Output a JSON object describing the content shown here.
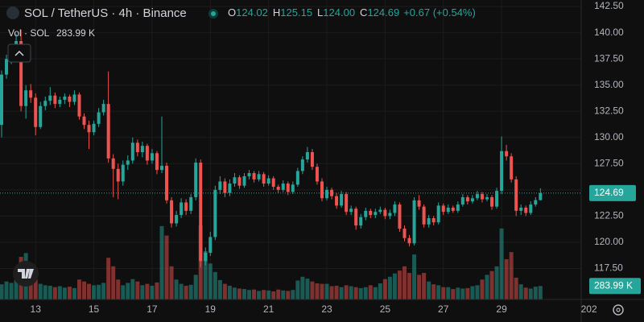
{
  "header": {
    "symbol": "SOL / TetherUS · 4h · Binance",
    "o_key": "O",
    "o": "124.02",
    "h_key": "H",
    "h": "125.15",
    "l_key": "L",
    "l": "124.00",
    "c_key": "C",
    "c": "124.69",
    "change": "+0.67 (+0.54%)"
  },
  "volume_legend": {
    "title": "Vol · SOL",
    "value": "283.99 K"
  },
  "chart_data": {
    "type": "candlestick",
    "up_color": "#26a69a",
    "down_color": "#ef5350",
    "ylim": [
      114.54,
      143.12
    ],
    "yticks": [
      {
        "value": 142.5,
        "label": "142.50"
      },
      {
        "value": 140,
        "label": "140.00"
      },
      {
        "value": 137.5,
        "label": "137.50"
      },
      {
        "value": 135,
        "label": "135.00"
      },
      {
        "value": 132.5,
        "label": "132.50"
      },
      {
        "value": 130,
        "label": "130.00"
      },
      {
        "value": 127.5,
        "label": "127.50"
      },
      {
        "value": 125,
        "label": "125.00"
      },
      {
        "value": 122.5,
        "label": "122.50"
      },
      {
        "value": 120,
        "label": "120.00"
      },
      {
        "value": 117.5,
        "label": "117.50"
      }
    ],
    "xticks": [
      {
        "value": 7,
        "label": "13"
      },
      {
        "value": 19,
        "label": "15"
      },
      {
        "value": 31,
        "label": "17"
      },
      {
        "value": 43,
        "label": "19"
      },
      {
        "value": 55,
        "label": "21"
      },
      {
        "value": 67,
        "label": "23"
      },
      {
        "value": 79,
        "label": "25"
      },
      {
        "value": 91,
        "label": "27"
      },
      {
        "value": 103,
        "label": "29"
      },
      {
        "value": 121,
        "label": "202"
      }
    ],
    "last_price": {
      "value": 124.69,
      "label": "124.69"
    },
    "last_volume": {
      "value": 283.99,
      "label": "283.99 K"
    },
    "volume_lim": [
      0,
      1700
    ],
    "candles": [
      [
        131.2,
        136.4,
        130.0,
        136.0
      ],
      [
        136.0,
        137.9,
        135.6,
        137.5
      ],
      [
        137.5,
        138.9,
        137.0,
        138.6
      ],
      [
        138.6,
        139.9,
        138.2,
        139.2
      ],
      [
        139.2,
        140.3,
        132.5,
        133.0
      ],
      [
        133.0,
        135.0,
        131.8,
        134.5
      ],
      [
        134.5,
        135.1,
        133.3,
        133.8
      ],
      [
        133.8,
        134.2,
        130.2,
        131.0
      ],
      [
        131.0,
        133.4,
        130.8,
        133.0
      ],
      [
        133.0,
        133.9,
        132.6,
        133.5
      ],
      [
        133.5,
        134.8,
        133.1,
        134.0
      ],
      [
        134.0,
        134.3,
        132.8,
        133.2
      ],
      [
        133.2,
        133.9,
        132.9,
        133.6
      ],
      [
        133.6,
        134.2,
        133.2,
        133.9
      ],
      [
        133.9,
        134.1,
        132.9,
        133.4
      ],
      [
        133.4,
        134.5,
        133.1,
        134.1
      ],
      [
        134.1,
        134.3,
        131.7,
        132.0
      ],
      [
        132.0,
        132.3,
        130.8,
        131.2
      ],
      [
        131.2,
        131.6,
        128.9,
        130.5
      ],
      [
        130.5,
        131.6,
        130.2,
        131.3
      ],
      [
        131.3,
        132.8,
        131.0,
        132.4
      ],
      [
        132.4,
        133.6,
        132.1,
        133.2
      ],
      [
        133.2,
        136.3,
        127.6,
        128.0
      ],
      [
        128.0,
        128.4,
        124.3,
        127.0
      ],
      [
        127.0,
        127.5,
        124.1,
        125.8
      ],
      [
        125.8,
        127.8,
        125.4,
        127.4
      ],
      [
        127.4,
        128.3,
        126.9,
        127.8
      ],
      [
        127.8,
        130.0,
        127.5,
        129.5
      ],
      [
        129.5,
        129.8,
        128.2,
        128.6
      ],
      [
        128.6,
        129.6,
        128.1,
        129.2
      ],
      [
        129.2,
        129.4,
        127.4,
        127.8
      ],
      [
        127.8,
        128.9,
        127.5,
        128.5
      ],
      [
        128.5,
        128.7,
        126.5,
        126.9
      ],
      [
        126.9,
        132.0,
        126.6,
        127.3
      ],
      [
        127.3,
        127.6,
        123.7,
        124.0
      ],
      [
        124.0,
        124.3,
        121.4,
        121.8
      ],
      [
        121.8,
        123.0,
        121.5,
        122.6
      ],
      [
        122.6,
        124.2,
        122.3,
        123.8
      ],
      [
        123.8,
        124.1,
        122.6,
        123.0
      ],
      [
        123.0,
        124.6,
        122.7,
        124.3
      ],
      [
        124.3,
        128.0,
        124.0,
        127.6
      ],
      [
        127.6,
        127.9,
        117.6,
        118.2
      ],
      [
        118.2,
        119.5,
        117.8,
        119.0
      ],
      [
        119.0,
        121.0,
        118.7,
        120.5
      ],
      [
        120.5,
        125.4,
        120.2,
        125.0
      ],
      [
        125.0,
        126.3,
        124.6,
        125.8
      ],
      [
        125.8,
        126.1,
        124.3,
        124.7
      ],
      [
        124.7,
        126.0,
        124.4,
        125.6
      ],
      [
        125.6,
        126.6,
        125.3,
        126.2
      ],
      [
        126.2,
        126.4,
        125.1,
        125.4
      ],
      [
        125.4,
        126.6,
        125.2,
        126.3
      ],
      [
        126.3,
        126.9,
        126.0,
        126.6
      ],
      [
        126.6,
        126.8,
        125.7,
        126.0
      ],
      [
        126.0,
        126.8,
        125.8,
        126.5
      ],
      [
        126.5,
        126.7,
        125.3,
        125.6
      ],
      [
        125.6,
        126.4,
        125.4,
        126.1
      ],
      [
        126.1,
        126.3,
        125.0,
        125.3
      ],
      [
        125.3,
        125.5,
        124.7,
        125.0
      ],
      [
        125.0,
        125.9,
        124.8,
        125.6
      ],
      [
        125.6,
        125.8,
        124.5,
        124.8
      ],
      [
        124.8,
        125.8,
        124.6,
        125.5
      ],
      [
        125.5,
        127.1,
        125.3,
        126.8
      ],
      [
        126.8,
        128.2,
        126.5,
        127.9
      ],
      [
        127.9,
        129.1,
        127.6,
        128.6
      ],
      [
        128.6,
        128.9,
        126.9,
        127.2
      ],
      [
        127.2,
        127.5,
        125.5,
        125.8
      ],
      [
        125.8,
        126.1,
        123.9,
        124.2
      ],
      [
        124.2,
        125.3,
        124.0,
        125.0
      ],
      [
        125.0,
        125.2,
        124.1,
        124.4
      ],
      [
        124.4,
        124.7,
        123.2,
        123.5
      ],
      [
        123.5,
        124.9,
        123.3,
        124.6
      ],
      [
        124.6,
        124.8,
        122.6,
        122.9
      ],
      [
        122.9,
        123.5,
        122.6,
        123.2
      ],
      [
        123.2,
        123.4,
        121.2,
        121.6
      ],
      [
        121.6,
        122.7,
        121.3,
        122.4
      ],
      [
        122.4,
        123.3,
        122.1,
        123.0
      ],
      [
        123.0,
        123.2,
        122.3,
        122.6
      ],
      [
        122.6,
        123.2,
        122.3,
        122.9
      ],
      [
        122.9,
        123.4,
        122.7,
        123.1
      ],
      [
        123.1,
        123.3,
        122.2,
        122.5
      ],
      [
        122.5,
        123.1,
        122.2,
        122.8
      ],
      [
        122.8,
        123.9,
        122.5,
        123.6
      ],
      [
        123.6,
        123.8,
        121.0,
        121.3
      ],
      [
        121.3,
        121.6,
        120.1,
        120.4
      ],
      [
        120.4,
        120.7,
        119.6,
        119.9
      ],
      [
        119.9,
        124.3,
        119.7,
        124.0
      ],
      [
        124.0,
        124.5,
        123.1,
        123.4
      ],
      [
        123.4,
        123.6,
        121.4,
        121.7
      ],
      [
        121.7,
        122.6,
        121.4,
        122.3
      ],
      [
        122.3,
        122.5,
        121.6,
        121.9
      ],
      [
        121.9,
        123.8,
        121.7,
        123.5
      ],
      [
        123.5,
        123.7,
        122.6,
        122.9
      ],
      [
        122.9,
        123.6,
        122.7,
        123.3
      ],
      [
        123.3,
        123.5,
        122.8,
        123.0
      ],
      [
        123.0,
        123.9,
        122.8,
        123.6
      ],
      [
        123.6,
        124.6,
        123.4,
        124.3
      ],
      [
        124.3,
        124.5,
        123.6,
        123.9
      ],
      [
        123.9,
        124.5,
        123.7,
        124.2
      ],
      [
        124.2,
        124.9,
        124.0,
        124.6
      ],
      [
        124.6,
        124.8,
        123.8,
        124.1
      ],
      [
        124.1,
        124.6,
        123.9,
        124.3
      ],
      [
        124.3,
        124.5,
        123.1,
        123.4
      ],
      [
        123.4,
        125.2,
        123.2,
        124.9
      ],
      [
        124.9,
        130.1,
        124.6,
        128.7
      ],
      [
        128.7,
        129.3,
        127.8,
        128.2
      ],
      [
        128.2,
        128.5,
        125.7,
        126.0
      ],
      [
        126.0,
        126.3,
        122.5,
        123.0
      ],
      [
        123.0,
        123.6,
        122.6,
        123.3
      ],
      [
        123.3,
        123.5,
        122.5,
        122.8
      ],
      [
        122.8,
        123.9,
        122.6,
        123.6
      ],
      [
        123.6,
        124.3,
        123.4,
        124.02
      ],
      [
        124.02,
        125.15,
        124.0,
        124.69
      ]
    ],
    "volumes": [
      320,
      380,
      350,
      420,
      900,
      980,
      600,
      420,
      330,
      300,
      290,
      260,
      280,
      250,
      270,
      240,
      420,
      380,
      330,
      300,
      310,
      350,
      880,
      700,
      420,
      300,
      350,
      430,
      380,
      300,
      330,
      290,
      360,
      1550,
      1350,
      700,
      420,
      330,
      290,
      310,
      520,
      1560,
      1020,
      760,
      580,
      410,
      330,
      290,
      250,
      230,
      220,
      200,
      210,
      180,
      200,
      190,
      170,
      210,
      190,
      180,
      200,
      400,
      480,
      440,
      380,
      340,
      330,
      330,
      280,
      290,
      260,
      300,
      280,
      260,
      240,
      260,
      300,
      260,
      340,
      430,
      480,
      550,
      610,
      700,
      560,
      950,
      520,
      560,
      380,
      320,
      300,
      260,
      260,
      220,
      250,
      230,
      240,
      280,
      300,
      420,
      520,
      600,
      700,
      1500,
      850,
      1000,
      460,
      320,
      250,
      230,
      270,
      283.99
    ]
  }
}
